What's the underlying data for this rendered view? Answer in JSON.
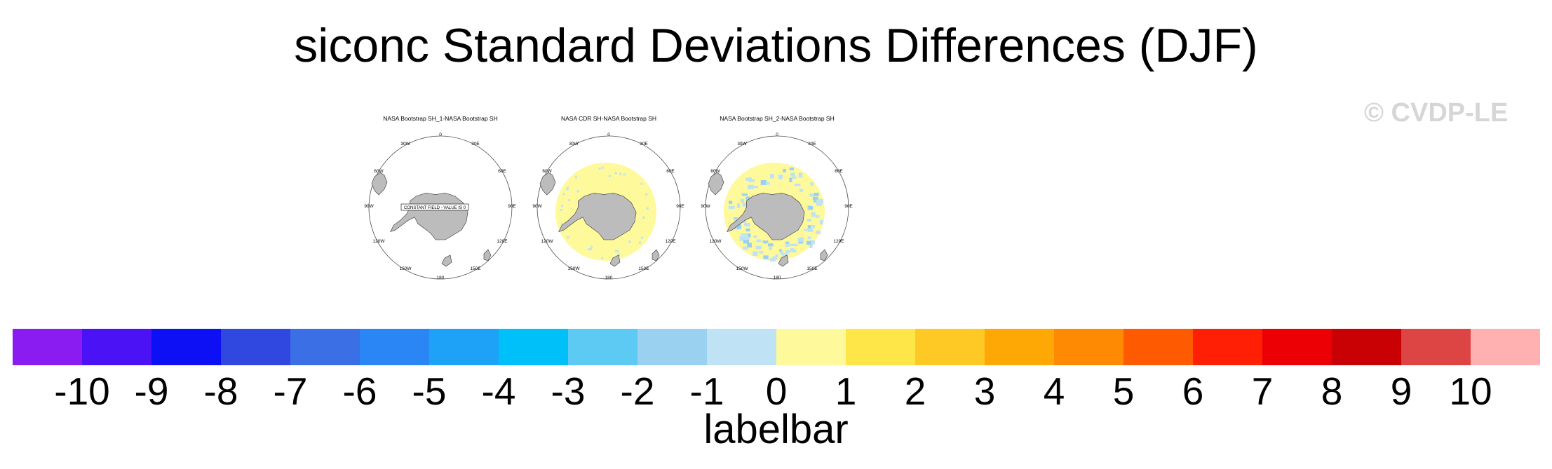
{
  "title": "siconc Standard Deviations Differences (DJF)",
  "watermark": "© CVDP-LE",
  "panels": [
    {
      "title": "NASA Bootstrap SH_1-NASA Bootstrap SH",
      "annotation": "CONSTANT FIELD - VALUE IS 0",
      "fill": "none"
    },
    {
      "title": "NASA CDR SH-NASA Bootstrap SH",
      "fill": "yellow"
    },
    {
      "title": "NASA Bootstrap SH_2-NASA Bootstrap SH",
      "fill": "mixed"
    }
  ],
  "map_labels": [
    "0",
    "30E",
    "60E",
    "90E",
    "120E",
    "150E",
    "180",
    "150W",
    "120W",
    "90W",
    "60W",
    "30W"
  ],
  "chart_data": {
    "type": "heatmap",
    "projection": "south polar stereographic",
    "variable": "siconc",
    "season": "DJF",
    "labelbar": {
      "title": "labelbar",
      "ticks": [
        "-10",
        "-9",
        "-8",
        "-7",
        "-6",
        "-5",
        "-4",
        "-3",
        "-2",
        "-1",
        "0",
        "1",
        "2",
        "3",
        "4",
        "5",
        "6",
        "7",
        "8",
        "9",
        "10"
      ],
      "colors": [
        "#8a1cf2",
        "#4a12f5",
        "#0d10f5",
        "#3048e0",
        "#3a6fe6",
        "#2a86f5",
        "#1ea2f7",
        "#00c0fa",
        "#5ccaf2",
        "#9ad1f0",
        "#bfe3f5",
        "#fef99a",
        "#fee548",
        "#fec825",
        "#fea806",
        "#fe8903",
        "#fe5a02",
        "#fe1f05",
        "#ec0005",
        "#c90004",
        "#dd4444",
        "#ffb1b1"
      ]
    }
  }
}
